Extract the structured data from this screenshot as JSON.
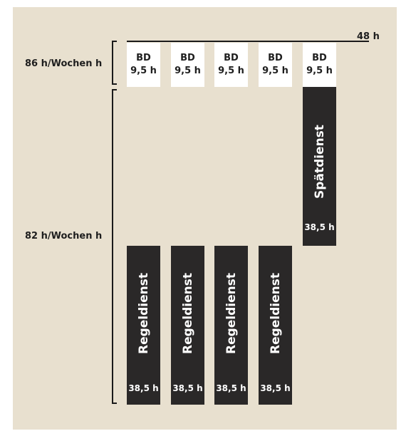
{
  "labels": {
    "top_right": "48 h",
    "upper_bracket": "86 h/Wochen h",
    "lower_bracket": "82 h/Wochen h"
  },
  "bd_boxes": [
    {
      "title": "BD",
      "hours": "9,5 h"
    },
    {
      "title": "BD",
      "hours": "9,5 h"
    },
    {
      "title": "BD",
      "hours": "9,5 h"
    },
    {
      "title": "BD",
      "hours": "9,5 h"
    },
    {
      "title": "BD",
      "hours": "9,5 h"
    }
  ],
  "regular_blocks": [
    {
      "label": "Regeldienst",
      "hours": "38,5 h"
    },
    {
      "label": "Regeldienst",
      "hours": "38,5 h"
    },
    {
      "label": "Regeldienst",
      "hours": "38,5 h"
    },
    {
      "label": "Regeldienst",
      "hours": "38,5 h"
    }
  ],
  "late_block": {
    "label": "Spätdienst",
    "hours": "38,5 h"
  },
  "colors": {
    "background": "#e8e0cf",
    "block": "#2a2828",
    "box": "#ffffff",
    "line": "#1a1a1a"
  }
}
